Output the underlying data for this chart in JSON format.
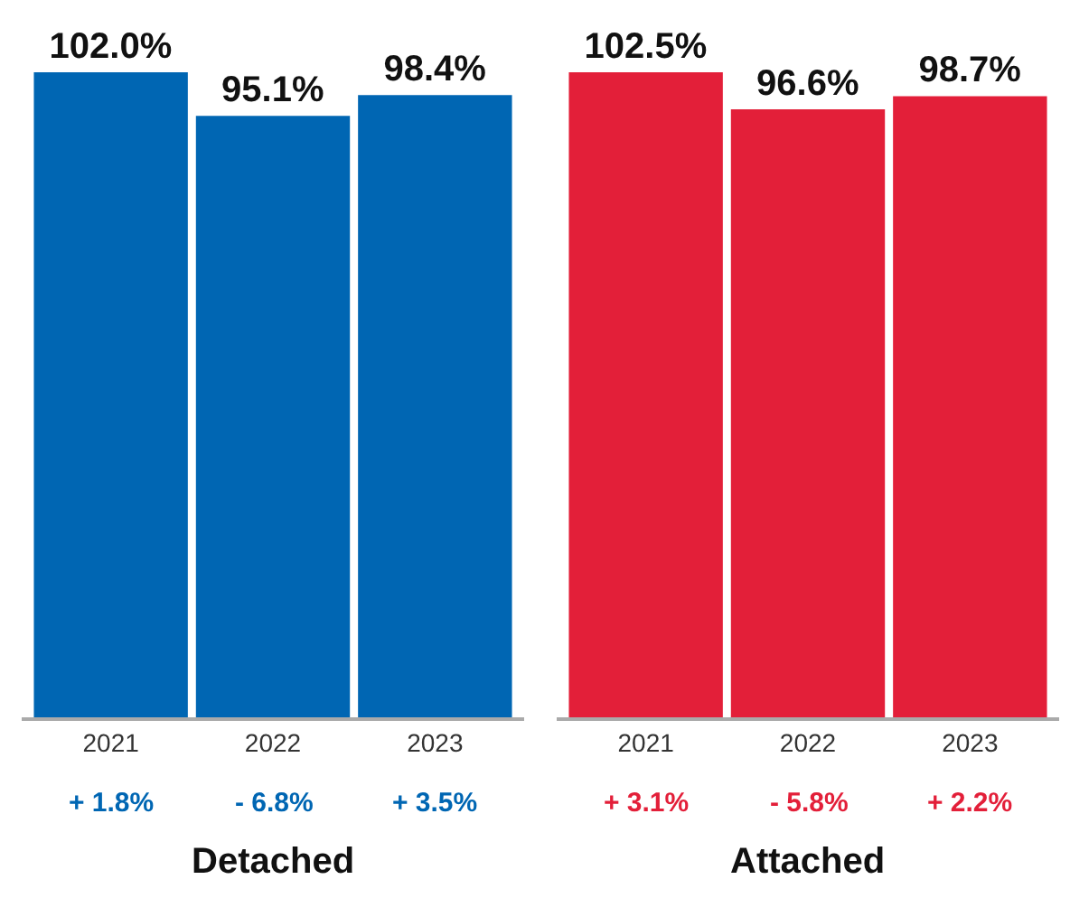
{
  "chart_data": [
    {
      "type": "bar",
      "xlabel": "Detached",
      "categories": [
        "2021",
        "2022",
        "2023"
      ],
      "values": [
        102.0,
        95.1,
        98.4
      ],
      "color": "#0066b3",
      "value_labels": [
        "102.0%",
        "95.1%",
        "98.4%"
      ],
      "annotations": [
        "+ 1.8%",
        "- 6.8%",
        "+ 3.5%"
      ]
    },
    {
      "type": "bar",
      "xlabel": "Attached",
      "categories": [
        "2021",
        "2022",
        "2023"
      ],
      "values": [
        102.5,
        96.6,
        98.7
      ],
      "color": "#e31f39",
      "value_labels": [
        "102.5%",
        "96.6%",
        "98.7%"
      ],
      "annotations": [
        "+ 3.1%",
        "- 5.8%",
        "+ 2.2%"
      ]
    }
  ]
}
